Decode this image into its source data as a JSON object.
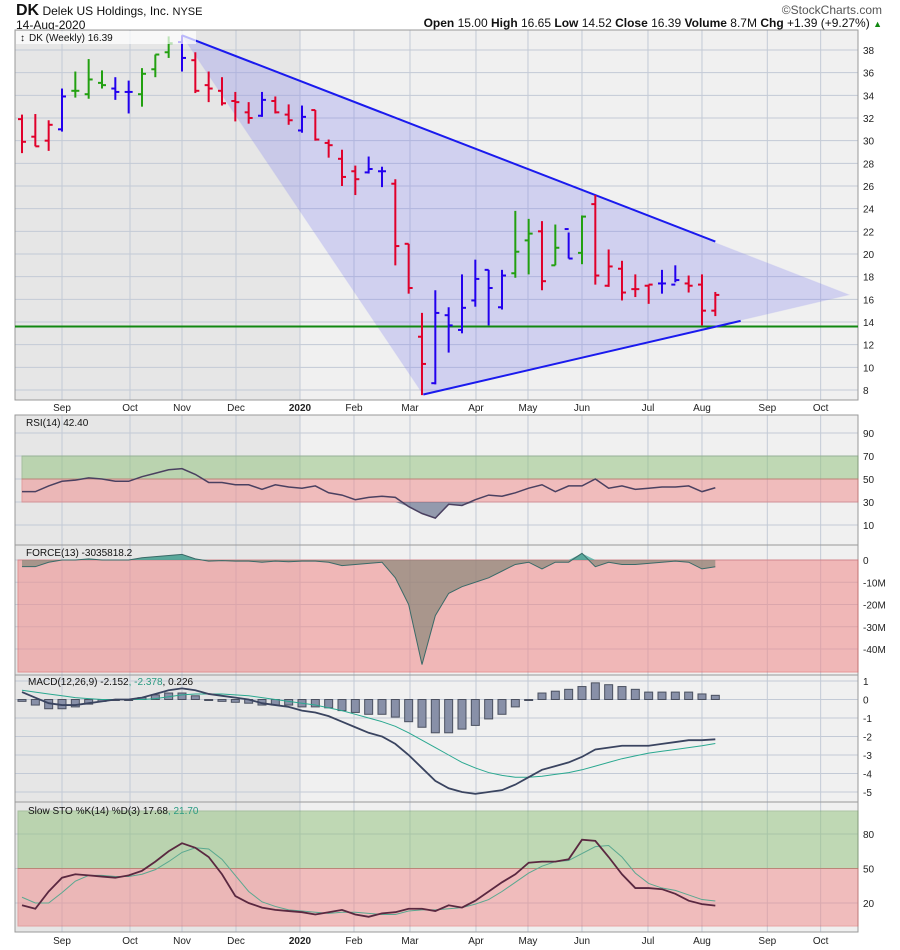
{
  "header": {
    "symbol": "DK",
    "company": "Delek US Holdings, Inc.",
    "exchange": "NYSE",
    "date": "14-Aug-2020",
    "copyright": "©StockCharts.com",
    "open_label": "Open",
    "open": "15.00",
    "high_label": "High",
    "high": "16.65",
    "low_label": "Low",
    "low": "14.52",
    "close_label": "Close",
    "close": "16.39",
    "volume_label": "Volume",
    "volume": "8.7M",
    "chg_label": "Chg",
    "chg": "+1.39 (+9.27%)"
  },
  "colors": {
    "up": "#22a010",
    "down": "#e0002a",
    "neutral": "#2200ee",
    "trend": "#1a1aee",
    "support": "#118811"
  },
  "chart_data": [
    {
      "type": "ohlc",
      "title": "DK (Weekly) 16.39",
      "ylim": [
        7,
        40
      ],
      "y_ticks": [
        8,
        10,
        12,
        14,
        16,
        18,
        20,
        22,
        24,
        26,
        28,
        30,
        32,
        34,
        36,
        38
      ],
      "x_ticks": [
        {
          "label": "Sep",
          "week": 3.0
        },
        {
          "label": "Oct",
          "week": 8.1
        },
        {
          "label": "Nov",
          "week": 12.0
        },
        {
          "label": "Dec",
          "week": 16.05
        },
        {
          "label": "2020",
          "week": 20.85,
          "bold": true
        },
        {
          "label": "Feb",
          "week": 24.9
        },
        {
          "label": "Mar",
          "week": 29.1
        },
        {
          "label": "Apr",
          "week": 34.05
        },
        {
          "label": "May",
          "week": 37.95
        },
        {
          "label": "Jun",
          "week": 42.0
        },
        {
          "label": "Jul",
          "week": 46.95
        },
        {
          "label": "Aug",
          "week": 51.0
        },
        {
          "label": "Sep",
          "week": 55.9
        },
        {
          "label": "Oct",
          "week": 59.9
        }
      ],
      "bars": [
        [
          31.9,
          32.3,
          28.9,
          29.9,
          "r"
        ],
        [
          30.35,
          32.35,
          29.5,
          29.5,
          "r"
        ],
        [
          30.0,
          31.8,
          29.1,
          31.4,
          "r"
        ],
        [
          31.0,
          34.6,
          30.8,
          33.9,
          "b"
        ],
        [
          34.4,
          36.1,
          33.8,
          34.4,
          "g"
        ],
        [
          34.1,
          37.2,
          33.7,
          35.4,
          "g"
        ],
        [
          35.1,
          36.2,
          34.6,
          34.9,
          "g"
        ],
        [
          34.6,
          35.6,
          33.6,
          34.3,
          "b"
        ],
        [
          34.3,
          35.3,
          32.4,
          34.3,
          "b"
        ],
        [
          34.1,
          36.4,
          33.0,
          35.9,
          "g"
        ],
        [
          36.3,
          37.6,
          35.6,
          37.6,
          "g"
        ],
        [
          37.8,
          39.2,
          37.3,
          38.6,
          "g"
        ],
        [
          38.7,
          39.3,
          36.1,
          37.3,
          "b"
        ],
        [
          37.1,
          37.8,
          34.2,
          34.4,
          "r"
        ],
        [
          34.9,
          36.1,
          33.4,
          34.6,
          "r"
        ],
        [
          34.4,
          35.6,
          33.1,
          33.3,
          "r"
        ],
        [
          33.5,
          34.3,
          31.7,
          33.4,
          "r"
        ],
        [
          32.5,
          33.4,
          31.5,
          32.0,
          "r"
        ],
        [
          32.2,
          34.3,
          32.1,
          33.6,
          "b"
        ],
        [
          33.5,
          33.9,
          32.4,
          32.5,
          "r"
        ],
        [
          32.3,
          33.2,
          31.4,
          31.8,
          "r"
        ],
        [
          30.9,
          33.1,
          30.7,
          32.1,
          "b"
        ],
        [
          32.7,
          32.7,
          30.0,
          30.1,
          "r"
        ],
        [
          29.8,
          30.1,
          28.5,
          29.6,
          "r"
        ],
        [
          28.4,
          29.2,
          26.0,
          26.8,
          "r"
        ],
        [
          27.3,
          27.8,
          25.2,
          26.6,
          "r"
        ],
        [
          27.2,
          28.6,
          27.1,
          27.5,
          "b"
        ],
        [
          27.3,
          27.7,
          25.9,
          27.3,
          "b"
        ],
        [
          26.2,
          26.6,
          19.0,
          20.7,
          "r"
        ],
        [
          20.9,
          20.9,
          16.5,
          17.0,
          "r"
        ],
        [
          12.7,
          14.8,
          7.55,
          10.3,
          "r"
        ],
        [
          8.6,
          16.8,
          8.5,
          14.8,
          "b"
        ],
        [
          14.6,
          15.3,
          11.3,
          13.7,
          "b"
        ],
        [
          13.3,
          18.2,
          13.0,
          15.25,
          "b"
        ],
        [
          15.9,
          19.5,
          15.35,
          17.8,
          "b"
        ],
        [
          18.6,
          18.6,
          13.7,
          17.0,
          "b"
        ],
        [
          15.3,
          18.6,
          15.1,
          18.1,
          "b"
        ],
        [
          18.3,
          23.8,
          17.9,
          20.2,
          "g"
        ],
        [
          21.2,
          23.1,
          18.2,
          21.8,
          "g"
        ],
        [
          22.0,
          22.9,
          16.8,
          17.6,
          "r"
        ],
        [
          19.0,
          22.6,
          19.0,
          20.55,
          "g"
        ],
        [
          22.2,
          21.9,
          19.6,
          19.6,
          "b"
        ],
        [
          20.1,
          23.4,
          19.1,
          23.3,
          "g"
        ],
        [
          24.4,
          25.2,
          17.3,
          18.1,
          "r"
        ],
        [
          17.2,
          20.4,
          17.1,
          18.9,
          "r"
        ],
        [
          18.7,
          19.4,
          15.9,
          16.6,
          "r"
        ],
        [
          16.9,
          18.2,
          16.2,
          16.9,
          "r"
        ],
        [
          17.2,
          17.3,
          15.6,
          17.3,
          "r"
        ],
        [
          17.4,
          18.6,
          16.5,
          17.4,
          "b"
        ],
        [
          17.3,
          19.0,
          17.5,
          17.7,
          "b"
        ],
        [
          17.4,
          18.1,
          16.6,
          17.2,
          "r"
        ],
        [
          17.3,
          18.2,
          13.7,
          15.0,
          "r"
        ],
        [
          15.0,
          16.65,
          14.52,
          16.39,
          "r"
        ]
      ],
      "annotations": {
        "upper_trendline": {
          "from": [
            12,
            39.3
          ],
          "to": [
            52,
            21.1
          ]
        },
        "lower_trendline": {
          "from": [
            30.1,
            7.6
          ],
          "to": [
            53.9,
            14.1
          ]
        },
        "triangle_apex": [
          62,
          16.4
        ],
        "support_level": 13.6
      }
    },
    {
      "type": "line",
      "title": "RSI(14) 42.40",
      "ylim": [
        0,
        100
      ],
      "y_ticks": [
        90,
        70,
        50,
        30,
        10
      ],
      "bands": {
        "overbought": [
          50,
          70
        ],
        "oversold": [
          30,
          50
        ]
      },
      "values": [
        39,
        39,
        44,
        48,
        49,
        51,
        50,
        48,
        48,
        52,
        55,
        58,
        59,
        54,
        47,
        47,
        45,
        45,
        41,
        45,
        43,
        42,
        44,
        38,
        36,
        32,
        34,
        35,
        34,
        26,
        20,
        16,
        28,
        27,
        32,
        36,
        35,
        38,
        42,
        45,
        39,
        44,
        44,
        50,
        42,
        44,
        41,
        42,
        43,
        43,
        44,
        39,
        42.4
      ]
    },
    {
      "type": "area",
      "title": "FORCE(13) -3035818.2",
      "unit": "M",
      "ylim": [
        -48,
        4
      ],
      "y_ticks": [
        {
          "v": 0,
          "label": "0"
        },
        {
          "v": -10,
          "label": "-10M"
        },
        {
          "v": -20,
          "label": "-20M"
        },
        {
          "v": -30,
          "label": "-30M"
        },
        {
          "v": -40,
          "label": "-40M"
        }
      ],
      "values": [
        -3,
        -3,
        -1,
        0,
        0,
        0.5,
        0,
        0,
        0,
        1,
        1.5,
        2,
        2.5,
        0.5,
        -0.5,
        -0.3,
        -0.5,
        -0.5,
        -1,
        -0.5,
        -0.8,
        -0.5,
        -0.5,
        -1,
        -2.5,
        -2,
        -1.5,
        -1,
        -8,
        -20,
        -47,
        -25,
        -15,
        -12,
        -10,
        -8,
        -5,
        -2,
        -1,
        -4,
        -1,
        -1,
        3,
        -3,
        -1,
        -2,
        -2,
        -1.5,
        -1,
        -0.5,
        -1,
        -4,
        -3.04
      ]
    },
    {
      "type": "macd",
      "title": "MACD(12,26,9)",
      "macd_value": "-2.152",
      "signal_value": "-2.378",
      "hist_value": "0.226",
      "ylim": [
        -5.4,
        1.3
      ],
      "y_ticks": [
        1,
        0,
        -1,
        -2,
        -3,
        -4,
        -5
      ],
      "macd": [
        0.4,
        0.1,
        -0.2,
        -0.3,
        -0.3,
        -0.2,
        -0.1,
        0,
        0,
        0.1,
        0.3,
        0.5,
        0.6,
        0.5,
        0.3,
        0.2,
        0.1,
        0,
        -0.2,
        -0.3,
        -0.4,
        -0.6,
        -0.7,
        -0.9,
        -1.2,
        -1.5,
        -1.8,
        -2.0,
        -2.4,
        -3.0,
        -3.7,
        -4.4,
        -4.8,
        -5.0,
        -5.1,
        -5.0,
        -4.9,
        -4.6,
        -4.2,
        -3.8,
        -3.6,
        -3.4,
        -3.1,
        -2.7,
        -2.6,
        -2.5,
        -2.5,
        -2.5,
        -2.4,
        -2.3,
        -2.2,
        -2.2,
        -2.152
      ],
      "signal": [
        0.5,
        0.4,
        0.3,
        0.2,
        0.1,
        0.05,
        0,
        0,
        0,
        0,
        0.05,
        0.15,
        0.25,
        0.3,
        0.3,
        0.3,
        0.25,
        0.2,
        0.1,
        0,
        -0.1,
        -0.2,
        -0.3,
        -0.45,
        -0.6,
        -0.8,
        -1.0,
        -1.2,
        -1.45,
        -1.8,
        -2.2,
        -2.6,
        -3.0,
        -3.4,
        -3.7,
        -3.95,
        -4.1,
        -4.2,
        -4.2,
        -4.15,
        -4.05,
        -3.95,
        -3.8,
        -3.6,
        -3.4,
        -3.2,
        -3.05,
        -2.9,
        -2.8,
        -2.7,
        -2.6,
        -2.5,
        -2.378
      ]
    },
    {
      "type": "line",
      "title": "Slow STO %K(14) %D(3)",
      "k_value": "17.68",
      "d_value": "21.70",
      "ylim": [
        0,
        100
      ],
      "y_ticks": [
        80,
        50,
        20
      ],
      "bands": {
        "overbought": [
          50,
          100
        ],
        "oversold": [
          0,
          50
        ]
      },
      "k": [
        18,
        15,
        30,
        42,
        45,
        44,
        43,
        42,
        44,
        48,
        56,
        65,
        72,
        68,
        60,
        45,
        26,
        20,
        16,
        14,
        13,
        12,
        10,
        12,
        14,
        10,
        8,
        11,
        12,
        15,
        15,
        13,
        18,
        16,
        22,
        30,
        38,
        45,
        55,
        56,
        56,
        58,
        75,
        74,
        60,
        45,
        33,
        33,
        32,
        28,
        22,
        19,
        17.68
      ],
      "d": [
        25,
        20,
        20,
        29,
        39,
        44,
        44,
        43,
        43,
        45,
        49,
        56,
        64,
        68,
        67,
        58,
        44,
        30,
        21,
        17,
        14,
        13,
        12,
        11,
        12,
        12,
        11,
        10,
        10,
        13,
        14,
        14,
        15,
        16,
        19,
        23,
        30,
        38,
        46,
        52,
        56,
        57,
        63,
        69,
        70,
        60,
        46,
        37,
        33,
        31,
        27,
        23,
        21.7
      ]
    }
  ]
}
